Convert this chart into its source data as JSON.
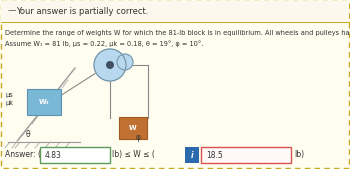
{
  "header_text": "Your answer is partially correct.",
  "header_bg": "#fdf8ee",
  "header_border_color": "#c8a820",
  "problem_line1": "Determine the range of weights W for which the 81-lb block is in equilibrium. All wheels and pulleys have negligible friction.",
  "problem_line2": "Assume W₁ = 81 lb, μs = 0.22, μk = 0.18, θ = 19°, φ = 10°.",
  "answer_label": "Answer: (",
  "answer_val1": "4.83",
  "answer_mid": "lb) ≤ W ≤ (",
  "answer_icon": "i",
  "answer_val2": "18.5",
  "answer_suffix": "lb)",
  "box1_border": "#5a9a5a",
  "box2_border": "#d9534f",
  "icon_bg": "#2a6aad",
  "outer_border": "#c8a820",
  "outer_bg": "#fefdf0",
  "header_bg_color": "#fdf8ee",
  "diagram_bg": "#f0f4f0"
}
